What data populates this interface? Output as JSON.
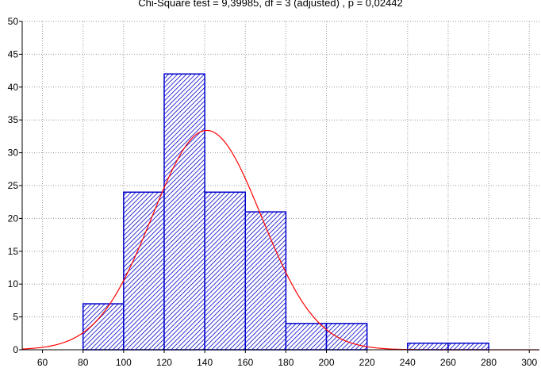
{
  "chart_data": {
    "type": "bar",
    "title": "Chi-Square test = 9,39985, df = 3 (adjusted) , p = 0,02442",
    "xlabel": "",
    "ylabel": "",
    "xlim": [
      50,
      305
    ],
    "ylim": [
      0,
      50
    ],
    "x_ticks": [
      60,
      80,
      100,
      120,
      140,
      160,
      180,
      200,
      220,
      240,
      260,
      280,
      300
    ],
    "y_ticks": [
      0,
      5,
      10,
      15,
      20,
      25,
      30,
      35,
      40,
      45,
      50
    ],
    "grid": true,
    "bins": [
      {
        "start": 80,
        "end": 100,
        "value": 7
      },
      {
        "start": 100,
        "end": 120,
        "value": 24
      },
      {
        "start": 120,
        "end": 140,
        "value": 42
      },
      {
        "start": 140,
        "end": 160,
        "value": 24
      },
      {
        "start": 160,
        "end": 180,
        "value": 21
      },
      {
        "start": 180,
        "end": 200,
        "value": 4
      },
      {
        "start": 200,
        "end": 220,
        "value": 4
      },
      {
        "start": 240,
        "end": 260,
        "value": 1
      },
      {
        "start": 260,
        "end": 280,
        "value": 1
      }
    ],
    "fit_curve": {
      "type": "normal",
      "mean": 141,
      "sd": 27,
      "peak": 33.4
    },
    "colors": {
      "bar_stroke": "#0000cc",
      "hatch": "#0000cc",
      "curve": "#ff0000",
      "grid": "#999999"
    }
  }
}
